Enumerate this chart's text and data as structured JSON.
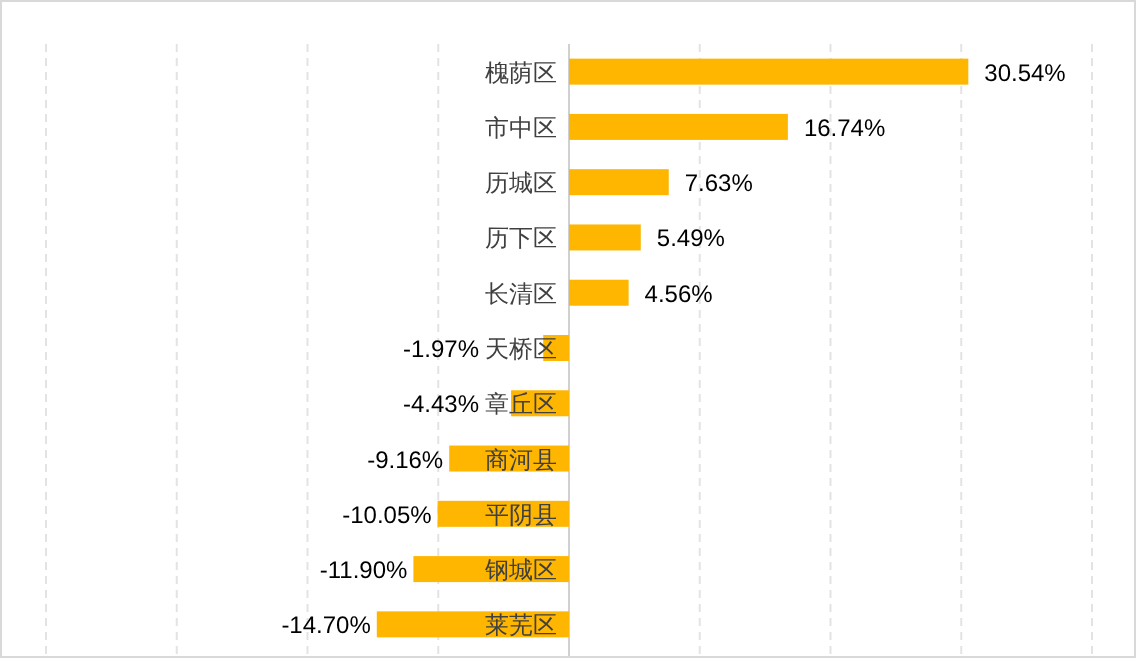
{
  "chart_data": {
    "type": "bar",
    "orientation": "horizontal",
    "categories": [
      "槐荫区",
      "市中区",
      "历城区",
      "历下区",
      "长清区",
      "天桥区",
      "章丘区",
      "商河县",
      "平阴县",
      "钢城区",
      "莱芜区"
    ],
    "values": [
      30.54,
      16.74,
      7.63,
      5.49,
      4.56,
      -1.97,
      -4.43,
      -9.16,
      -10.05,
      -11.9,
      -14.7
    ],
    "value_labels": [
      "30.54%",
      "16.74%",
      "7.63%",
      "5.49%",
      "4.56%",
      "-1.97%",
      "-4.43%",
      "-9.16%",
      "-10.05%",
      "-11.90%",
      "-14.70%"
    ],
    "color": "#ffb600",
    "xlim": [
      -40,
      40
    ],
    "xticks": [
      {
        "value": -40,
        "label": null
      },
      {
        "value": -30,
        "label": null
      },
      {
        "value": -20,
        "label": null
      },
      {
        "value": -10,
        "label": null
      },
      {
        "value": 0,
        "label": null
      },
      {
        "value": 10,
        "label": null
      },
      {
        "value": 20,
        "label": null
      },
      {
        "value": 30,
        "label": null
      },
      {
        "value": 40,
        "label": null
      }
    ],
    "grid": "x",
    "tick_labels": "y"
  }
}
